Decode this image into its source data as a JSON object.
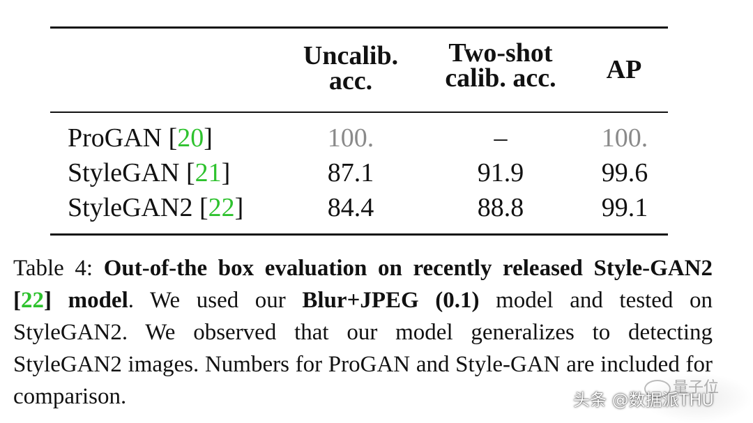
{
  "table": {
    "headers": {
      "uncalib": [
        "Uncalib.",
        "acc."
      ],
      "twoshot": [
        "Two-shot",
        "calib. acc."
      ],
      "ap": "AP"
    },
    "rows": [
      {
        "model": "ProGAN ",
        "ref": "20",
        "uncalib": "100.",
        "twoshot": "–",
        "ap": "100."
      },
      {
        "model": "StyleGAN ",
        "ref": "21",
        "uncalib": "87.1",
        "twoshot": "91.9",
        "ap": "99.6"
      },
      {
        "model": "StyleGAN2 ",
        "ref": "22",
        "uncalib": "84.4",
        "twoshot": "88.8",
        "ap": "99.1"
      }
    ]
  },
  "caption": {
    "label": "Table 4: ",
    "bold_title_1": "Out-of-the box evaluation on recently released Style-GAN2 [",
    "ref": "22",
    "bold_title_2": "] model",
    "text_1": ".  We used our ",
    "bold_model": "Blur+JPEG (0.1)",
    "text_2": " model and tested on StyleGAN2. We observed that our model generalizes to detecting StyleGAN2 images.  Numbers for ProGAN and Style-GAN are included for comparison."
  },
  "watermark": {
    "text": "头条 @数据派THU",
    "sub": "量子位"
  },
  "colors": {
    "ref_link": "#2ec22e",
    "grey_value": "#8a8a8a"
  }
}
